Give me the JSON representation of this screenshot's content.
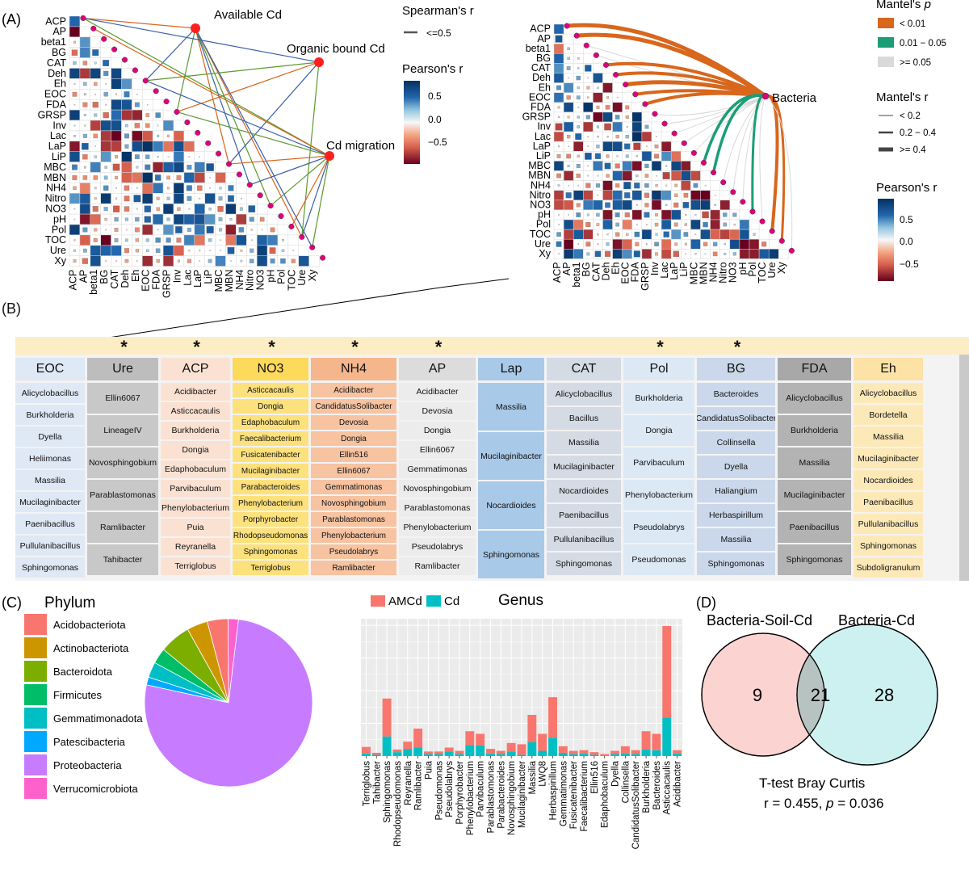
{
  "panels": {
    "A": "(A)",
    "B": "(B)",
    "C": "(C)",
    "D": "(D)"
  },
  "variables": [
    "ACP",
    "AP",
    "beta1",
    "BG",
    "CAT",
    "Deh",
    "Eh",
    "EOC",
    "FDA",
    "GRSP",
    "Inv",
    "Lac",
    "LaP",
    "LiP",
    "MBC",
    "MBN",
    "NH4",
    "Nitro",
    "NO3",
    "pH",
    "Pol",
    "TOC",
    "Ure",
    "Xy"
  ],
  "panel_a_left": {
    "nodes": [
      "Available Cd",
      "Organic bound Cd",
      "Cd migration"
    ],
    "spearman_legend": {
      "title": "Spearman's r",
      "items": [
        "<=0.5"
      ]
    },
    "pearson_legend": {
      "title": "Pearson's r",
      "ticks": [
        "0.5",
        "0.0",
        "−0.5"
      ]
    }
  },
  "panel_a_right": {
    "node": "Bacteria",
    "mantel_p_legend": {
      "title": "Mantel's ",
      "title_italic": "p",
      "items": [
        "< 0.01",
        "0.01 − 0.05",
        ">= 0.05"
      ],
      "colors": [
        "#d8661c",
        "#1b9e77",
        "#d9d9d9"
      ]
    },
    "mantel_r_legend": {
      "title": "Mantel's r",
      "items": [
        "< 0.2",
        "0.2 − 0.4",
        ">= 0.4"
      ]
    },
    "pearson_legend": {
      "title": "Pearson's r",
      "ticks": [
        "0.5",
        "0.0",
        "−0.5"
      ]
    }
  },
  "panel_b": {
    "star": "*",
    "columns": [
      {
        "header": "EOC",
        "star": false,
        "bg": "#dfe8f5",
        "items": [
          "Alicyclobacillus",
          "Burkholderia",
          "Dyella",
          "Heliimonas",
          "Massilia",
          "Mucilaginibacter",
          "Paenibacillus",
          "Pullulanibacillus",
          "Sphingomonas"
        ]
      },
      {
        "header": "Ure",
        "star": true,
        "bg": "#c8c8c8",
        "hbg": "#bdbdbd",
        "items": [
          "Ellin6067",
          "LineageIV",
          "Novosphingobium",
          "Parablastomonas",
          "Ramlibacter",
          "Tahibacter"
        ]
      },
      {
        "header": "ACP",
        "star": true,
        "bg": "#fbe1d2",
        "items": [
          "Acidibacter",
          "Asticcacaulis",
          "Burkholderia",
          "Dongia",
          "Edaphobaculum",
          "Parvibaculum",
          "Phenylobacterium",
          "Puia",
          "Reyranella",
          "Terriglobus"
        ]
      },
      {
        "header": "NO3",
        "star": true,
        "bg": "#fde17c",
        "hbg": "#fdd95c",
        "items": [
          "Asticcacaulis",
          "Dongia",
          "Edaphobaculum",
          "Faecalibacterium",
          "Fusicatenibacter",
          "Mucilaginibacter",
          "Parabacteroides",
          "Phenylobacterium",
          "Porphyrobacter",
          "Rhodopseudomonas",
          "Sphingomonas",
          "Terriglobus"
        ]
      },
      {
        "header": "NH4",
        "star": true,
        "bg": "#f7c3a1",
        "hbg": "#f6b68c",
        "items": [
          "Acidibacter",
          "CandidatusSolibacter",
          "Devosia",
          "Dongia",
          "Ellin516",
          "Ellin6067",
          "Gemmatimonas",
          "Novosphingobium",
          "Parablastomonas",
          "Phenylobacterium",
          "Pseudolabrys",
          "Ramlibacter"
        ]
      },
      {
        "header": "AP",
        "star": true,
        "bg": "#ececec",
        "hbg": "#dcdcdc",
        "items": [
          "Acidibacter",
          "Devosia",
          "Dongia",
          "Ellin6067",
          "Gemmatimonas",
          "Novosphingobium",
          "Parablastomonas",
          "Phenylobacterium",
          "Pseudolabrys",
          "Ramlibacter"
        ]
      },
      {
        "header": "Lap",
        "star": false,
        "bg": "#a9c9e8",
        "hbg": "#a9c9e8",
        "items": [
          "Massilia",
          "Mucilaginibacter",
          "Nocardioides",
          "Sphingomonas"
        ]
      },
      {
        "header": "CAT",
        "star": false,
        "bg": "#d4dbe5",
        "hbg": "#d4dbe5",
        "items": [
          "Alicyclobacillus",
          "Bacillus",
          "Massilia",
          "Mucilaginibacter",
          "Nocardioides",
          "Paenibacillus",
          "Pullulanibacillus",
          "Sphingomonas"
        ]
      },
      {
        "header": "Pol",
        "star": true,
        "bg": "#dce9f5",
        "hbg": "#dce9f5",
        "items": [
          "Burkholderia",
          "Dongia",
          "Parvibaculum",
          "Phenylobacterium",
          "Pseudolabrys",
          "Pseudomonas"
        ]
      },
      {
        "header": "BG",
        "star": true,
        "bg": "#cbd8eb",
        "hbg": "#cbd8eb",
        "items": [
          "Bacteroides",
          "CandidatusSolibacter",
          "Collinsella",
          "Dyella",
          "Haliangium",
          "Herbaspirillum",
          "Massilia",
          "Sphingomonas"
        ]
      },
      {
        "header": "FDA",
        "star": false,
        "bg": "#b3b3b3",
        "hbg": "#a8a8a8",
        "items": [
          "Alicyclobacillus",
          "Burkholderia",
          "Massilia",
          "Mucilaginibacter",
          "Paenibacillus",
          "Sphingomonas"
        ]
      },
      {
        "header": "Eh",
        "star": false,
        "bg": "#fde9b8",
        "hbg": "#fde2a6",
        "items": [
          "Alicyclobacillus",
          "Bordetella",
          "Massilia",
          "Mucilaginibacter",
          "Nocardioides",
          "Paenibacillus",
          "Pullulanibacillus",
          "Sphingomonas",
          "Subdoligranulum"
        ]
      }
    ]
  },
  "chart_data": [
    {
      "type": "pie",
      "title": "Phylum",
      "labels": [
        "Acidobacteriota",
        "Actinobacteriota",
        "Bacteroidota",
        "Firmicutes",
        "Gemmatimonadota",
        "Patescibacteria",
        "Proteobacteria",
        "Verrucomicrobiota"
      ],
      "values": [
        4,
        4,
        6,
        3,
        3,
        1.5,
        76.5,
        2
      ],
      "colors": [
        "#f8766d",
        "#cd9600",
        "#7cae00",
        "#00be67",
        "#00bfc4",
        "#00a9ff",
        "#c77cff",
        "#ff61cc"
      ],
      "legend": "left"
    },
    {
      "type": "bar",
      "stacked": true,
      "title": "Genus",
      "categories": [
        "Terriglobus",
        "Tahibacter",
        "Sphingomonas",
        "Rhodopseudomonas",
        "Reyranella",
        "Ramlibacter",
        "Puia",
        "Pseudomonas",
        "Pseudolabrys",
        "Porphyrobacter",
        "Phenylobacterium",
        "Parvibaculum",
        "Parablastomonas",
        "Parabacteroides",
        "Novosphingobium",
        "Mucilaginibacter",
        "Massilia",
        "LWQ8",
        "Herbaspirillum",
        "Gemmatimonas",
        "Fusicatenibacter",
        "Faecalibacterium",
        "Ellin516",
        "Edaphobaculum",
        "Dyella",
        "Collinsella",
        "CandidatusSolibacter",
        "Burkholderia",
        "Bacteroides",
        "Asticcacaulis",
        "Acidibacter"
      ],
      "series": [
        {
          "name": "Cd",
          "color": "#00bfc4",
          "values": [
            0.4,
            0.2,
            3.0,
            0.6,
            1.1,
            1.3,
            0.3,
            0.3,
            0.7,
            0.3,
            1.7,
            1.6,
            0.4,
            0.3,
            0.7,
            0.2,
            2.1,
            0.8,
            2.8,
            0.5,
            0.3,
            0.4,
            0.2,
            0.1,
            0.3,
            0.4,
            0.3,
            1.0,
            0.9,
            5.9,
            0.4
          ]
        },
        {
          "name": "AMCd",
          "color": "#f8766d",
          "values": [
            1.0,
            0.3,
            5.8,
            0.4,
            1.1,
            2.9,
            0.4,
            0.4,
            0.6,
            0.5,
            2.1,
            1.8,
            0.7,
            0.5,
            1.3,
            1.6,
            4.2,
            2.6,
            6.2,
            1.0,
            0.5,
            0.5,
            0.4,
            0.2,
            0.5,
            1.1,
            0.6,
            2.8,
            2.5,
            14.0,
            0.5
          ]
        }
      ],
      "legend": "top-left",
      "grid": true
    }
  ],
  "panel_d": {
    "left_label": "Bacteria-Soil-Cd",
    "right_label": "Bacteria-Cd",
    "left_only": "9",
    "overlap": "21",
    "right_only": "28",
    "test_label": "T-test Bray Curtis",
    "stats_r": "r = 0.455, ",
    "stats_p_italic": "p",
    "stats_p_value": " = 0.036"
  }
}
